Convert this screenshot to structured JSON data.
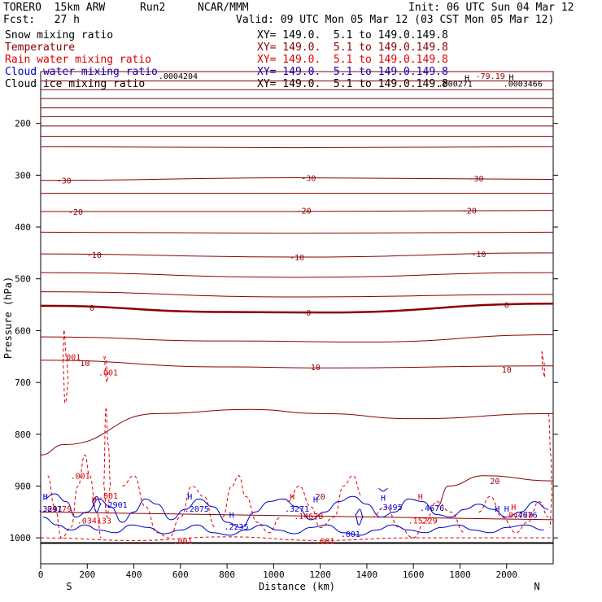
{
  "header": {
    "model": "TORERO  15km ARW",
    "run": "Run2",
    "org": "NCAR/MMM",
    "init": "Init: 06 UTC Sun 04 Mar 12",
    "fcst": "Fcst:   27 h",
    "valid": "Valid: 09 UTC Mon 05 Mar 12 (03 CST Mon 05 Mar 12)"
  },
  "legend": [
    {
      "name": "Snow mixing ratio",
      "color": "#000000",
      "xy": "XY= 149.0.  5.1 to 149.0.149.8"
    },
    {
      "name": "Temperature",
      "color": "#8b0000",
      "xy": "XY= 149.0.  5.1 to 149.0.149.8"
    },
    {
      "name": "Rain water mixing ratio",
      "color": "#dd0000",
      "xy": "XY= 149.0.  5.1 to 149.0.149.8"
    },
    {
      "name": "Cloud water mixing ratio",
      "color": "#0000cc",
      "xy": "XY= 149.0.  5.1 to 149.0.149.8"
    },
    {
      "name": "Cloud ice mixing ratio",
      "color": "#000000",
      "xy": "XY= 149.0.  5.1 to 149.0.149.8"
    }
  ],
  "chart_data": {
    "type": "contour-cross-section",
    "xlabel": "Distance (km)",
    "ylabel": "Pressure (hPa)",
    "xlim": [
      0,
      2200
    ],
    "ylim": [
      1050,
      100
    ],
    "x_ticks": [
      0,
      200,
      400,
      600,
      800,
      1000,
      1200,
      1400,
      1600,
      1800,
      2000
    ],
    "y_ticks": [
      200,
      300,
      400,
      500,
      600,
      700,
      800,
      900,
      1000
    ],
    "start_label": "S",
    "end_label": "N",
    "temperature_contours": [
      {
        "level": -79.19,
        "points": [
          [
            0,
            100
          ],
          [
            2200,
            100
          ]
        ],
        "label": "-79.19",
        "label_x": 1930,
        "label_p": 108
      },
      {
        "level": null,
        "points": [
          [
            0,
            118
          ],
          [
            2200,
            118
          ]
        ]
      },
      {
        "level": null,
        "points": [
          [
            0,
            135
          ],
          [
            2200,
            135
          ]
        ]
      },
      {
        "level": null,
        "points": [
          [
            0,
            152
          ],
          [
            2200,
            152
          ]
        ]
      },
      {
        "level": null,
        "points": [
          [
            0,
            170
          ],
          [
            2200,
            170
          ]
        ]
      },
      {
        "level": null,
        "points": [
          [
            0,
            187
          ],
          [
            2200,
            187
          ]
        ]
      },
      {
        "level": null,
        "points": [
          [
            0,
            205
          ],
          [
            2200,
            205
          ]
        ]
      },
      {
        "level": null,
        "points": [
          [
            0,
            225
          ],
          [
            2200,
            225
          ]
        ]
      },
      {
        "level": null,
        "points": [
          [
            0,
            245
          ],
          [
            1100,
            247
          ],
          [
            2200,
            245
          ]
        ]
      },
      {
        "level": -30,
        "points": [
          [
            0,
            310
          ],
          [
            1100,
            305
          ],
          [
            2200,
            308
          ]
        ],
        "label": "-30",
        "label_x": 100,
        "label_p": 310
      },
      {
        "level": null,
        "points": [
          [
            0,
            335
          ],
          [
            1100,
            335
          ],
          [
            2200,
            335
          ]
        ]
      },
      {
        "level": -20,
        "points": [
          [
            0,
            370
          ],
          [
            1100,
            370
          ],
          [
            2200,
            368
          ]
        ],
        "label": "-20",
        "label_x": 150,
        "label_p": 370
      },
      {
        "level": null,
        "points": [
          [
            0,
            410
          ],
          [
            1100,
            412
          ],
          [
            2200,
            410
          ]
        ]
      },
      {
        "level": -10,
        "points": [
          [
            0,
            452
          ],
          [
            1100,
            458
          ],
          [
            2200,
            450
          ]
        ],
        "label": "-10",
        "label_x": 230,
        "label_p": 453
      },
      {
        "level": null,
        "points": [
          [
            0,
            488
          ],
          [
            1100,
            497
          ],
          [
            2200,
            488
          ]
        ]
      },
      {
        "level": null,
        "points": [
          [
            0,
            525
          ],
          [
            1100,
            535
          ],
          [
            2200,
            530
          ]
        ]
      },
      {
        "level": 0,
        "bold": true,
        "points": [
          [
            0,
            552
          ],
          [
            800,
            564
          ],
          [
            1200,
            565
          ],
          [
            2200,
            548
          ]
        ],
        "label": "0",
        "label_x": 220,
        "label_p": 555
      },
      {
        "level": null,
        "points": [
          [
            0,
            612
          ],
          [
            800,
            620
          ],
          [
            1400,
            622
          ],
          [
            2200,
            608
          ]
        ]
      },
      {
        "level": 10,
        "points": [
          [
            0,
            657
          ],
          [
            800,
            670
          ],
          [
            1200,
            672
          ],
          [
            2200,
            668
          ]
        ],
        "label": "10",
        "label_x": 190,
        "label_p": 662
      },
      {
        "level": null,
        "points": [
          [
            0,
            840
          ],
          [
            100,
            820
          ],
          [
            500,
            760
          ],
          [
            900,
            752
          ],
          [
            1200,
            760
          ],
          [
            1600,
            770
          ],
          [
            2200,
            760
          ]
        ]
      },
      {
        "level": 20,
        "points": [
          [
            1700,
            940
          ],
          [
            1750,
            900
          ],
          [
            1900,
            880
          ],
          [
            2200,
            890
          ]
        ],
        "label": "20",
        "label_x": 1950,
        "label_p": 890
      },
      {
        "level": null,
        "points": [
          [
            0,
            950
          ],
          [
            2200,
            965
          ]
        ]
      }
    ],
    "temp_labels": [
      {
        "text": "-30",
        "x": 1150,
        "p": 305
      },
      {
        "text": "-30",
        "x": 1870,
        "p": 306
      },
      {
        "text": "-20",
        "x": 1130,
        "p": 368
      },
      {
        "text": "-20",
        "x": 1840,
        "p": 368
      },
      {
        "text": "-10",
        "x": 1100,
        "p": 458
      },
      {
        "text": "-10",
        "x": 1880,
        "p": 452
      },
      {
        "text": "0",
        "x": 1150,
        "p": 565
      },
      {
        "text": "0",
        "x": 2000,
        "p": 550
      },
      {
        "text": "10",
        "x": 1180,
        "p": 670
      },
      {
        "text": "10",
        "x": 2000,
        "p": 675
      },
      {
        "text": "20",
        "x": 1200,
        "p": 920
      }
    ],
    "rain_labels": [
      {
        "text": ".001",
        "x": 130,
        "p": 650
      },
      {
        "text": ".001",
        "x": 290,
        "p": 680
      },
      {
        "text": ".001",
        "x": 170,
        "p": 880
      },
      {
        "text": ".001",
        "x": 290,
        "p": 918
      },
      {
        "text": ".001",
        "x": 610,
        "p": 1005
      },
      {
        "text": ".001",
        "x": 1220,
        "p": 1005
      },
      {
        "text": ".04779",
        "x": 70,
        "p": 943
      },
      {
        "text": ".034133",
        "x": 230,
        "p": 966
      },
      {
        "text": ".14678",
        "x": 1150,
        "p": 957
      },
      {
        "text": ".15229",
        "x": 1640,
        "p": 966
      },
      {
        "text": ".04778",
        "x": 2050,
        "p": 955
      }
    ],
    "cloud_water_labels": [
      {
        "text": ".3291",
        "x": 40,
        "p": 943
      },
      {
        "text": ".2901",
        "x": 320,
        "p": 935
      },
      {
        "text": ".2075",
        "x": 670,
        "p": 943
      },
      {
        "text": ".2235",
        "x": 840,
        "p": 978
      },
      {
        "text": ".3271",
        "x": 1100,
        "p": 943
      },
      {
        "text": ".3495",
        "x": 1500,
        "p": 940
      },
      {
        "text": ".4676",
        "x": 1680,
        "p": 942
      },
      {
        "text": ".4676",
        "x": 2080,
        "p": 955
      },
      {
        "text": ".001",
        "x": 1330,
        "p": 992
      }
    ],
    "ice_labels": [
      {
        "text": ".0004204",
        "x": 590,
        "p": 108
      },
      {
        "text": ".000271",
        "x": 1780,
        "p": 123
      },
      {
        "text": ".0003466",
        "x": 2070,
        "p": 123
      }
    ],
    "highs": [
      {
        "text": "H",
        "x": 20,
        "p": 920
      },
      {
        "text": "H",
        "x": 230,
        "p": 925
      },
      {
        "text": "H",
        "x": 640,
        "p": 920
      },
      {
        "text": "H",
        "x": 820,
        "p": 955
      },
      {
        "text": "H",
        "x": 1080,
        "p": 920
      },
      {
        "text": "H",
        "x": 1180,
        "p": 925
      },
      {
        "text": "H",
        "x": 1470,
        "p": 922
      },
      {
        "text": "H",
        "x": 1630,
        "p": 920
      },
      {
        "text": "H",
        "x": 1960,
        "p": 943
      },
      {
        "text": "H",
        "x": 2000,
        "p": 943
      },
      {
        "text": "H",
        "x": 2030,
        "p": 940
      },
      {
        "text": "H",
        "x": 1830,
        "p": 112
      },
      {
        "text": "H",
        "x": 2020,
        "p": 110
      }
    ]
  },
  "colors": {
    "temperature": "#8b0000",
    "rain": "#dd0000",
    "cloud_water": "#0000cc",
    "text": "#000000"
  }
}
